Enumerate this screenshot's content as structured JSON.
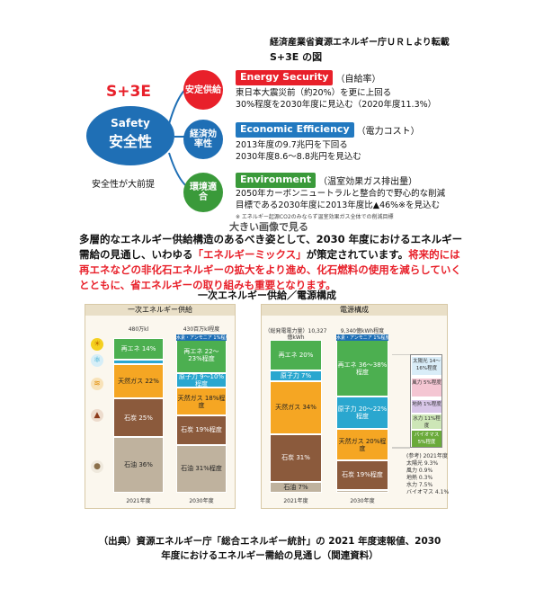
{
  "header": {
    "source_note": "経済産業省資源エネルギー庁ＵＲＬより転載",
    "figure_title": "S+3E の図"
  },
  "s3e": {
    "title": "S+3E",
    "center_en": "Safety",
    "center_jp": "安全性",
    "premise": "安全性が大前提",
    "items": [
      {
        "circle": "安定供給",
        "label": "Energy Security",
        "paren": "（自給率）",
        "lines": [
          "東日本大震災前（約20%）を更に上回る",
          "30%程度を2030年度に見込む（2020年度11.3%）"
        ]
      },
      {
        "circle": "経済効率性",
        "label": "Economic Efficiency",
        "paren": "（電力コスト）",
        "lines": [
          "2013年度の9.7兆円を下回る",
          "2030年度8.6～8.8兆円を見込む"
        ]
      },
      {
        "circle": "環境適合",
        "label": "Environment",
        "paren": "（温室効果ガス排出量）",
        "lines": [
          "2050年カーボンニュートラルと整合的で野心的な削減",
          "目標である2030年度に2013年度比▲46%※を見込む"
        ]
      }
    ],
    "footnote": "※ エネルギー起源CO2のみならず温室効果ガス全体での削減目標"
  },
  "link_text": "大きい画像で見る",
  "body": {
    "line1": "多層的なエネルギー供給構造のあるべき姿として、2030 年度におけるエネルギー需給の見通し、いわゆる",
    "highlight": "「エネルギーミックス」",
    "line2": "が策定されています。",
    "red_text": "将来的には再エネなどの非化石エネルギーの拡大をより進め、化石燃料の使用を減らしていくとともに、省エネルギーの取り組みも重要となります。"
  },
  "chart_title": "一次エネルギー供給／電源構成",
  "chart_data": [
    {
      "type": "bar",
      "title": "一次エネルギー供給",
      "categories": [
        "2021年度",
        "2030年度"
      ],
      "totals": [
        "480万kl",
        "430百万kl程度"
      ],
      "series": [
        {
          "name": "再エネ",
          "labels": [
            "再エネ 14%",
            "再エネ 22〜23%程度"
          ],
          "values": [
            14,
            22.5
          ],
          "color": "#4caf50"
        },
        {
          "name": "原子力",
          "labels": [
            "原子力 3%",
            "原子力 9〜10%程度"
          ],
          "values": [
            3,
            9.5
          ],
          "color": "#2aa7cf"
        },
        {
          "name": "天然ガス",
          "labels": [
            "天然ガス 22%",
            "天然ガス 18%程度"
          ],
          "values": [
            22,
            18
          ],
          "color": "#f5a623"
        },
        {
          "name": "石炭",
          "labels": [
            "石炭 25%",
            "石炭 19%程度"
          ],
          "values": [
            25,
            19
          ],
          "color": "#8b5a3c"
        },
        {
          "name": "石油",
          "labels": [
            "石油 36%",
            "石油 31%程度"
          ],
          "values": [
            36,
            31
          ],
          "color": "#bfb29e"
        }
      ],
      "extra_labels": [
        "水素・アンモニア 1%程度"
      ]
    },
    {
      "type": "bar",
      "title": "電源構成",
      "categories": [
        "2021年度",
        "2030年度"
      ],
      "totals": [
        "（総発電電力量）10,327億kWh",
        "9,340億kWh程度"
      ],
      "series": [
        {
          "name": "再エネ",
          "labels": [
            "再エネ 20%",
            "再エネ 36〜38%程度"
          ],
          "values": [
            20,
            37
          ],
          "color": "#4caf50"
        },
        {
          "name": "原子力",
          "labels": [
            "原子力 7%",
            "原子力 20〜22%程度"
          ],
          "values": [
            7,
            21
          ],
          "color": "#2aa7cf"
        },
        {
          "name": "天然ガス",
          "labels": [
            "天然ガス 34%",
            "天然ガス 20%程度"
          ],
          "values": [
            34,
            20
          ],
          "color": "#f5a623"
        },
        {
          "name": "石炭",
          "labels": [
            "石炭 31%",
            "石炭 19%程度"
          ],
          "values": [
            31,
            19
          ],
          "color": "#8b5a3c"
        },
        {
          "name": "石油",
          "labels": [
            "石油 7%",
            "石油 2%程度"
          ],
          "values": [
            7,
            2
          ],
          "color": "#bfb29e"
        }
      ],
      "extra_labels": [
        "水素・アンモニア 1%程度"
      ],
      "breakdown": [
        "太陽光 14〜16%程度",
        "風力 5%程度",
        "地熱 1%程度",
        "水力 11%程度",
        "バイオマス 5%程度"
      ],
      "reference_values": [
        "(参考) 2021年度",
        "太陽光 9.3%",
        "風力 0.9%",
        "地熱 0.3%",
        "水力 7.5%",
        "バイオマス 4.1%"
      ]
    }
  ],
  "caption": {
    "line1": "（出典）資源エネルギー庁「総合エネルギー統計」の 2021 年度速報値、2030",
    "line2": "年度におけるエネルギー需給の見通し（関連資料）"
  },
  "colors": {
    "accent_red": "#e8202a",
    "accent_blue": "#1f6fb5",
    "accent_green": "#3a9a3a"
  }
}
